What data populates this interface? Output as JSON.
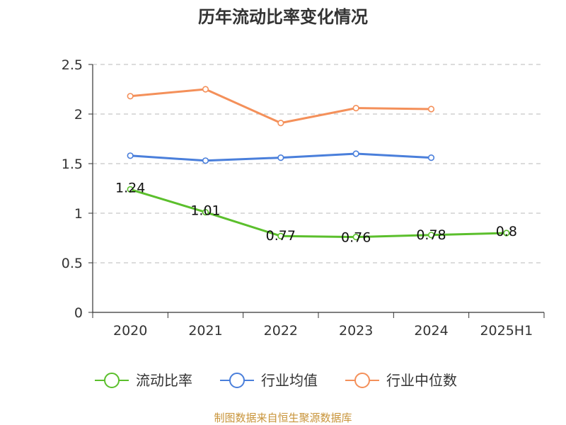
{
  "chart_data": {
    "type": "line",
    "title": "历年流动比率变化情况",
    "categories": [
      "2020",
      "2021",
      "2022",
      "2023",
      "2024",
      "2025H1"
    ],
    "ylim": [
      0,
      2.5
    ],
    "yticks": [
      "0",
      "0.5",
      "1",
      "1.5",
      "2",
      "2.5"
    ],
    "grid": true,
    "legend_position": "bottom",
    "series": [
      {
        "name": "流动比率",
        "color": "#5bbf2c",
        "values": [
          1.24,
          1.01,
          0.77,
          0.76,
          0.78,
          0.8
        ],
        "labels": [
          "1.24",
          "1.01",
          "0.77",
          "0.76",
          "0.78",
          "0.8"
        ]
      },
      {
        "name": "行业均值",
        "color": "#4a7fdb",
        "values": [
          1.58,
          1.53,
          1.56,
          1.6,
          1.56,
          null
        ]
      },
      {
        "name": "行业中位数",
        "color": "#f4905a",
        "values": [
          2.18,
          2.25,
          1.91,
          2.06,
          2.05,
          null
        ]
      }
    ]
  },
  "source": "制图数据来自恒生聚源数据库"
}
